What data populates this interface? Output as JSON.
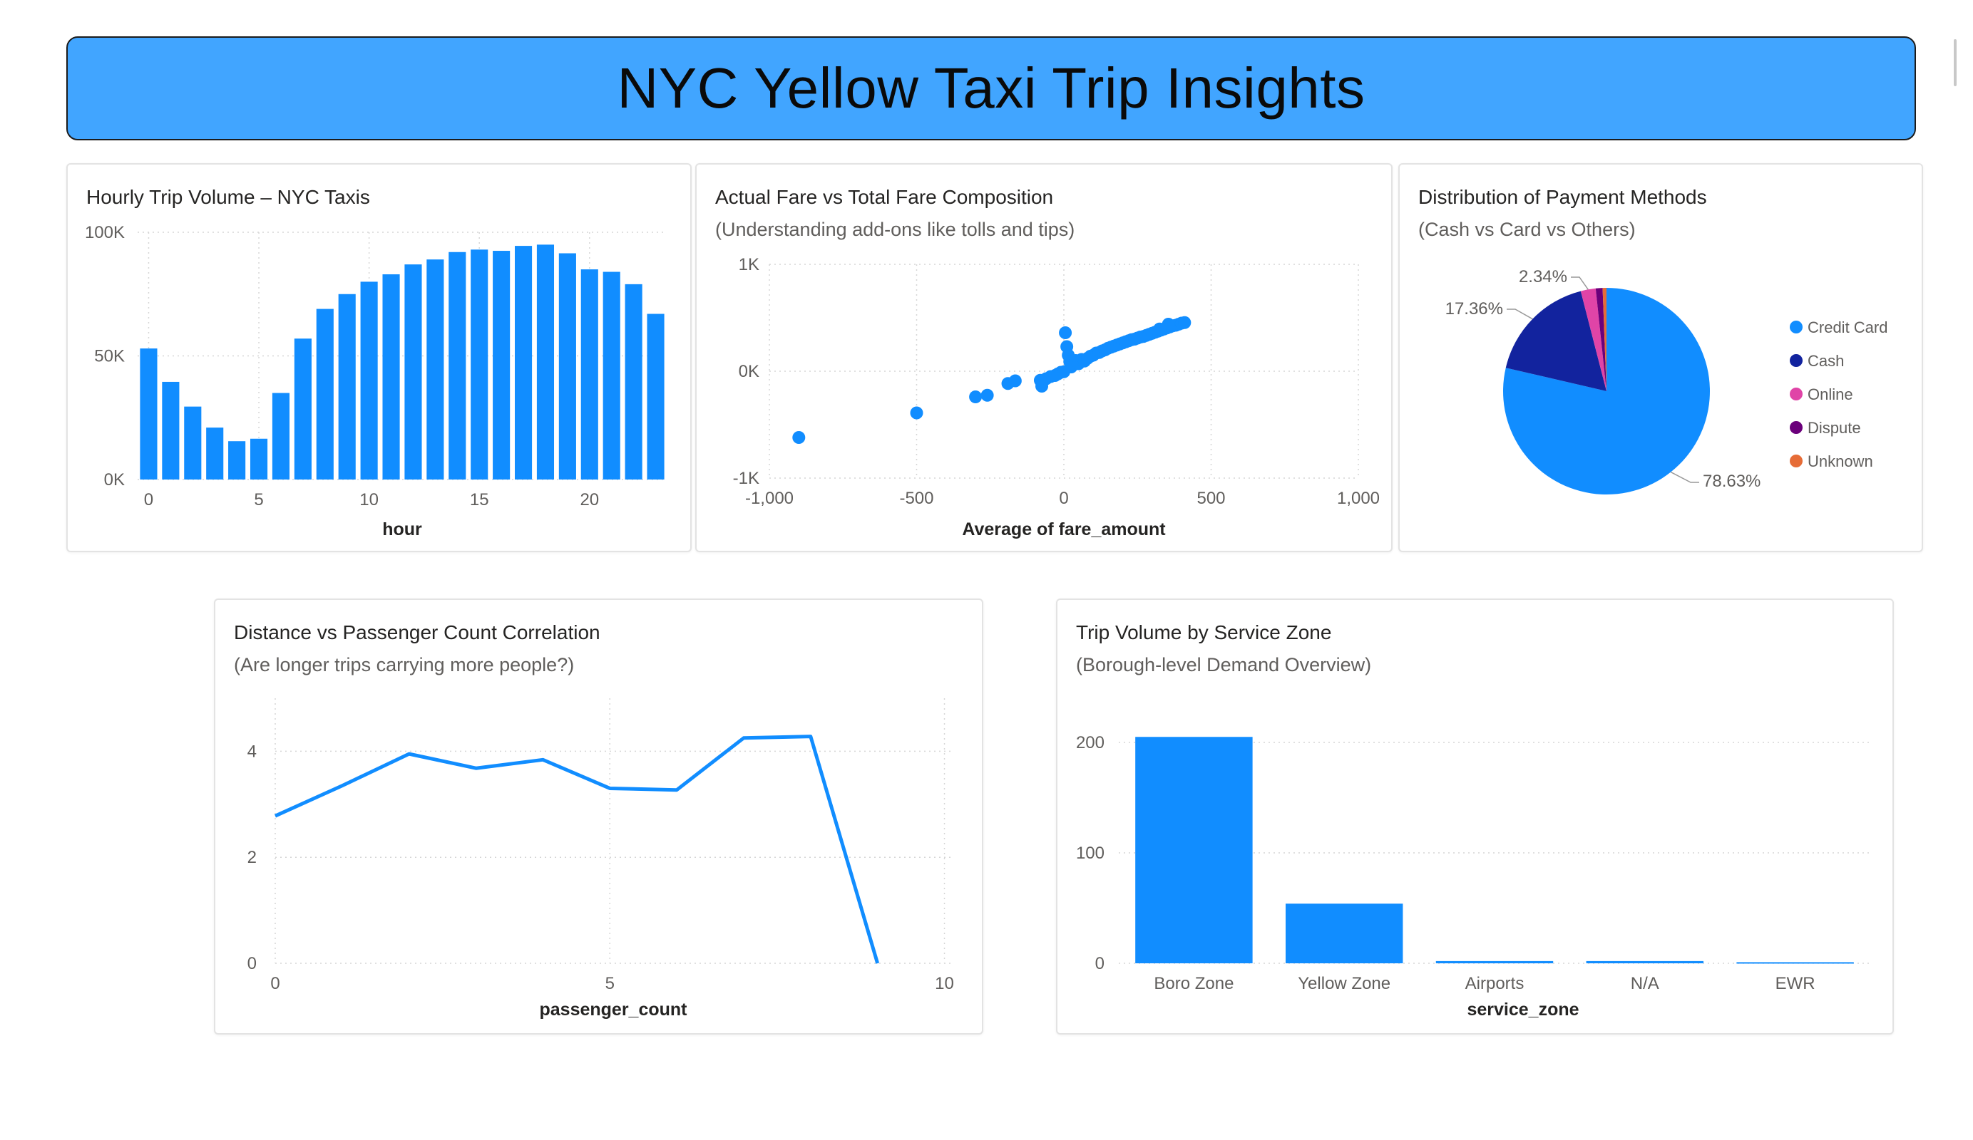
{
  "dashboard": {
    "title": "NYC Yellow Taxi Trip Insights"
  },
  "colors": {
    "banner": "#41a5ff",
    "primary_series": "#118dff",
    "cash": "#12239e",
    "online": "#e044a7",
    "dispute": "#6b007b",
    "unknown": "#e66c37"
  },
  "chart_data": [
    {
      "id": "hourly",
      "type": "bar",
      "title": "Hourly Trip Volume – NYC Taxis",
      "xlabel": "hour",
      "ylabel": "",
      "x": [
        0,
        1,
        2,
        3,
        4,
        5,
        6,
        7,
        8,
        9,
        10,
        11,
        12,
        13,
        14,
        15,
        16,
        17,
        18,
        19,
        20,
        21,
        22,
        23
      ],
      "values": [
        53000,
        39500,
        29500,
        21000,
        15500,
        16500,
        35000,
        57000,
        69000,
        75000,
        80000,
        83000,
        87000,
        89000,
        92000,
        93000,
        92500,
        94500,
        95000,
        91500,
        85000,
        84000,
        79000,
        67000
      ],
      "xticks": [
        0,
        5,
        10,
        15,
        20
      ],
      "yticks": [
        {
          "value": 0,
          "label": "0K"
        },
        {
          "value": 50000,
          "label": "50K"
        },
        {
          "value": 100000,
          "label": "100K"
        }
      ],
      "ylim": [
        0,
        100000
      ],
      "xlim": [
        -0.5,
        23.5
      ],
      "grid": true
    },
    {
      "id": "fare",
      "type": "scatter",
      "title": "Actual Fare vs Total Fare Composition",
      "subtitle": "(Understanding add-ons like tolls and tips)",
      "xlabel": "Average of fare_amount",
      "ylabel": "",
      "xlim": [
        -1000,
        1000
      ],
      "ylim": [
        -1000,
        1000
      ],
      "xticks": [
        {
          "value": -1000,
          "label": "-1,000"
        },
        {
          "value": -500,
          "label": "-500"
        },
        {
          "value": 0,
          "label": "0"
        },
        {
          "value": 500,
          "label": "500"
        },
        {
          "value": 1000,
          "label": "1,000"
        }
      ],
      "yticks": [
        {
          "value": -1000,
          "label": "-1K"
        },
        {
          "value": 0,
          "label": "0K"
        },
        {
          "value": 1000,
          "label": "1K"
        }
      ],
      "points": [
        [
          -900,
          -620
        ],
        [
          -500,
          -390
        ],
        [
          -300,
          -240
        ],
        [
          -260,
          -225
        ],
        [
          -190,
          -115
        ],
        [
          -165,
          -90
        ],
        [
          -75,
          -140
        ],
        [
          -80,
          -85
        ],
        [
          -60,
          -70
        ],
        [
          -45,
          -50
        ],
        [
          -30,
          -40
        ],
        [
          -20,
          -25
        ],
        [
          -10,
          -10
        ],
        [
          0,
          -5
        ],
        [
          5,
          360
        ],
        [
          10,
          230
        ],
        [
          15,
          150
        ],
        [
          20,
          90
        ],
        [
          25,
          40
        ],
        [
          30,
          60
        ],
        [
          40,
          100
        ],
        [
          50,
          70
        ],
        [
          60,
          110
        ],
        [
          70,
          95
        ],
        [
          80,
          120
        ],
        [
          90,
          140
        ],
        [
          100,
          150
        ],
        [
          110,
          170
        ],
        [
          120,
          175
        ],
        [
          130,
          190
        ],
        [
          140,
          200
        ],
        [
          150,
          215
        ],
        [
          160,
          225
        ],
        [
          170,
          235
        ],
        [
          180,
          245
        ],
        [
          190,
          255
        ],
        [
          200,
          265
        ],
        [
          210,
          275
        ],
        [
          220,
          285
        ],
        [
          230,
          295
        ],
        [
          240,
          300
        ],
        [
          250,
          310
        ],
        [
          260,
          320
        ],
        [
          270,
          325
        ],
        [
          280,
          335
        ],
        [
          290,
          345
        ],
        [
          300,
          355
        ],
        [
          310,
          365
        ],
        [
          320,
          375
        ],
        [
          330,
          385
        ],
        [
          340,
          395
        ],
        [
          350,
          405
        ],
        [
          360,
          415
        ],
        [
          370,
          425
        ],
        [
          380,
          430
        ],
        [
          390,
          440
        ],
        [
          400,
          450
        ],
        [
          410,
          455
        ],
        [
          355,
          440
        ],
        [
          325,
          395
        ]
      ],
      "grid": true
    },
    {
      "id": "payment",
      "type": "pie",
      "title": "Distribution of Payment Methods",
      "subtitle": "(Cash vs Card vs Others)",
      "slices": [
        {
          "name": "Credit Card",
          "value": 78.63,
          "label": "78.63%",
          "color": "#118dff"
        },
        {
          "name": "Cash",
          "value": 17.36,
          "label": "17.36%",
          "color": "#12239e"
        },
        {
          "name": "Online",
          "value": 2.34,
          "label": "2.34%",
          "color": "#e044a7"
        },
        {
          "name": "Dispute",
          "value": 1.07,
          "label": "",
          "color": "#6b007b"
        },
        {
          "name": "Unknown",
          "value": 0.6,
          "label": "",
          "color": "#e66c37"
        }
      ],
      "legend": "right"
    },
    {
      "id": "distance",
      "type": "line",
      "title": "Distance vs Passenger Count Correlation",
      "subtitle": "(Are longer trips carrying more people?)",
      "xlabel": "passenger_count",
      "ylabel": "",
      "x": [
        0,
        1,
        2,
        3,
        4,
        5,
        6,
        7,
        8,
        9
      ],
      "values": [
        2.78,
        3.35,
        3.95,
        3.68,
        3.84,
        3.3,
        3.27,
        4.25,
        4.28,
        0.0
      ],
      "xlim": [
        0,
        10
      ],
      "ylim": [
        0,
        5
      ],
      "xticks": [
        0,
        5,
        10
      ],
      "yticks": [
        0,
        2,
        4
      ],
      "grid": true
    },
    {
      "id": "zones",
      "type": "bar",
      "title": "Trip Volume by Service Zone",
      "subtitle": "(Borough-level Demand Overview)",
      "xlabel": "service_zone",
      "ylabel": "",
      "categories": [
        "Boro Zone",
        "Yellow Zone",
        "Airports",
        "N/A",
        "EWR"
      ],
      "values": [
        205,
        54,
        2,
        2,
        1
      ],
      "ylim": [
        0,
        240
      ],
      "yticks": [
        0,
        100,
        200
      ],
      "grid": true
    }
  ]
}
